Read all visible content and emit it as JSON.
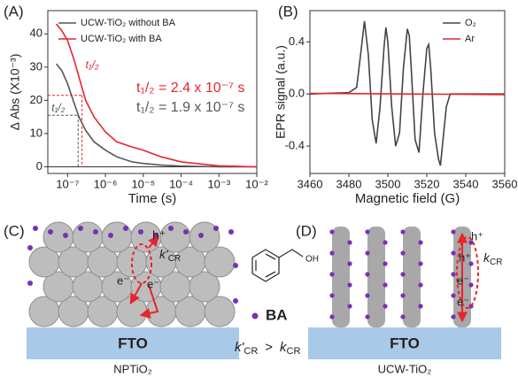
{
  "chart_data": [
    {
      "type": "line",
      "panel_label": "(A)",
      "xlabel": "Time (s)",
      "ylabel": "Δ Abs (X10⁻³)",
      "xscale": "log",
      "xlim": [
        3e-08,
        0.01
      ],
      "ylim": [
        -2,
        47
      ],
      "xticks": [
        {
          "value": 1e-07,
          "label": "10⁻⁷"
        },
        {
          "value": 1e-06,
          "label": "10⁻⁶"
        },
        {
          "value": 1e-05,
          "label": "10⁻⁵"
        },
        {
          "value": 0.0001,
          "label": "10⁻⁴"
        },
        {
          "value": 0.001,
          "label": "10⁻³"
        },
        {
          "value": 0.01,
          "label": "10⁻²"
        }
      ],
      "yticks": [
        0,
        10,
        20,
        30,
        40
      ],
      "zero_line": true,
      "legend": "upper left",
      "x": [
        5e-08,
        7e-08,
        1e-07,
        1.5e-07,
        2e-07,
        3e-07,
        5e-07,
        1e-06,
        2e-06,
        5e-06,
        1e-05,
        3e-05,
        0.0001,
        0.001,
        0.01
      ],
      "series": [
        {
          "name": "UCW-TiO₂ without BA",
          "color": "#555555",
          "values": [
            31,
            29,
            25,
            19,
            15,
            11,
            7.5,
            5,
            3,
            1.5,
            1,
            0.5,
            0.2,
            0,
            0
          ]
        },
        {
          "name": "UCW-TiO₂ with BA",
          "color": "#e8242c",
          "values": [
            43,
            41,
            38,
            32,
            27,
            20,
            15,
            10.5,
            7.5,
            6,
            5,
            3,
            1.5,
            0.3,
            0
          ]
        }
      ],
      "half_life_markers": [
        {
          "x": 2.4e-07,
          "y": 21.5,
          "color": "#e8242c",
          "label": "t₁/₂",
          "note": "t₁/₂ = 2.4 x 10⁻⁷ s"
        },
        {
          "x": 1.9e-07,
          "y": 15.5,
          "color": "#555555",
          "label": "t₁/₂",
          "note": "t₁/₂ = 1.9 x 10⁻⁷ s"
        }
      ]
    },
    {
      "type": "line",
      "panel_label": "(B)",
      "xlabel": "Magnetic field (G)",
      "ylabel": "EPR signal (a.u.)",
      "xlim": [
        3460,
        3560
      ],
      "ylim": [
        -0.61,
        0.64
      ],
      "xticks": [
        3460,
        3480,
        3500,
        3520,
        3540,
        3560
      ],
      "yticks": [
        -0.4,
        {
          "value": 0,
          "label": "0.0"
        },
        0.4
      ],
      "legend": "upper right",
      "series": [
        {
          "name": "O₂",
          "color": "#444444",
          "x": [
            3460,
            3480,
            3484,
            3486,
            3488,
            3490,
            3492,
            3494,
            3496,
            3498,
            3499,
            3500,
            3502,
            3504,
            3506,
            3508,
            3510,
            3511,
            3512,
            3514,
            3516,
            3518,
            3520,
            3521,
            3522,
            3524,
            3526,
            3527,
            3528,
            3530,
            3532,
            3540,
            3560
          ],
          "values": [
            0,
            0.01,
            0.05,
            0.3,
            0.56,
            0.3,
            -0.2,
            -0.38,
            -0.1,
            0.35,
            0.51,
            0.4,
            -0.1,
            -0.4,
            -0.3,
            0.2,
            0.5,
            0.45,
            0.2,
            -0.35,
            -0.45,
            0,
            0.35,
            0.38,
            0.2,
            -0.3,
            -0.5,
            -0.55,
            -0.4,
            -0.1,
            0,
            0,
            0
          ]
        },
        {
          "name": "Ar",
          "color": "#e8242c",
          "x": [
            3460,
            3510,
            3560
          ],
          "values": [
            0.005,
            0,
            -0.005
          ]
        }
      ]
    }
  ],
  "diagrams": {
    "C": {
      "label": "(C)",
      "substrate": "FTO",
      "hole": "h⁺",
      "rate": {
        "symbol": "k'",
        "subscript": "CR"
      },
      "electrons": [
        "e⁻",
        "e⁻"
      ],
      "caption": "NPTiO₂"
    },
    "molecule": {
      "group": "OH",
      "legend": "BA",
      "relation": {
        "left": {
          "symbol": "k'",
          "subscript": "CR"
        },
        "operator": ">",
        "right": {
          "symbol": "k",
          "subscript": "CR"
        }
      }
    },
    "D": {
      "label": "(D)",
      "substrate": "FTO",
      "holes": [
        "h⁺",
        "h⁺"
      ],
      "rate": {
        "symbol": "k",
        "subscript": "CR"
      },
      "electrons": [
        "e⁻",
        "e⁻"
      ],
      "caption": "UCW-TiO₂"
    }
  }
}
